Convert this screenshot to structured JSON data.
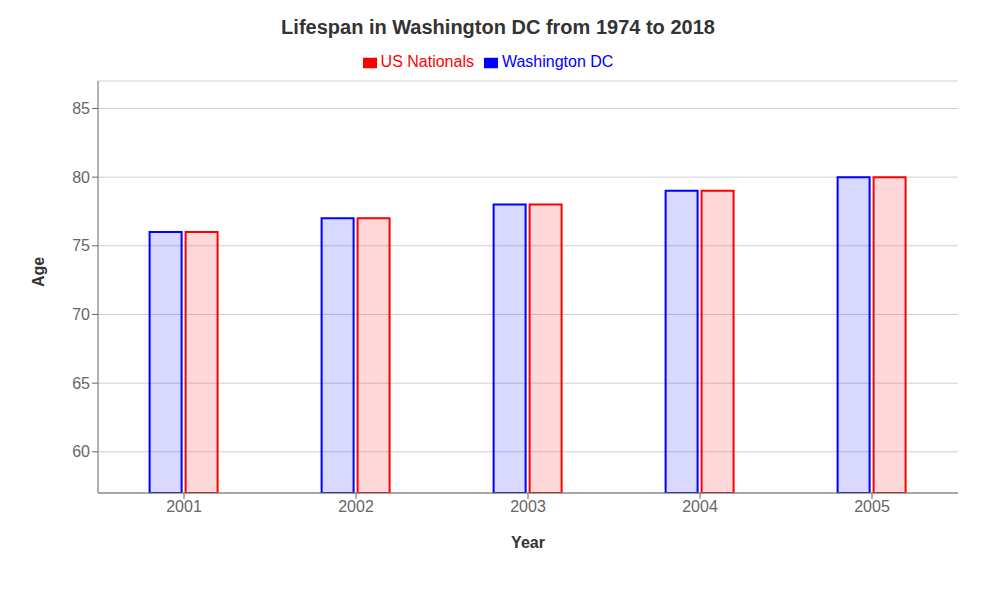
{
  "chart_data": {
    "type": "bar",
    "title": "Lifespan in Washington DC from 1974 to 2018",
    "xlabel": "Year",
    "ylabel": "Age",
    "categories": [
      "2001",
      "2002",
      "2003",
      "2004",
      "2005"
    ],
    "series": [
      {
        "name": "Washington DC",
        "color": "#0000ff",
        "values": [
          76,
          77,
          78,
          79,
          80
        ]
      },
      {
        "name": "US Nationals",
        "color": "#ff0000",
        "values": [
          76,
          77,
          78,
          79,
          80
        ]
      }
    ],
    "ylim": [
      57,
      87
    ],
    "yticks": [
      60,
      65,
      70,
      75,
      80,
      85
    ],
    "grid": true,
    "legend": "top"
  }
}
